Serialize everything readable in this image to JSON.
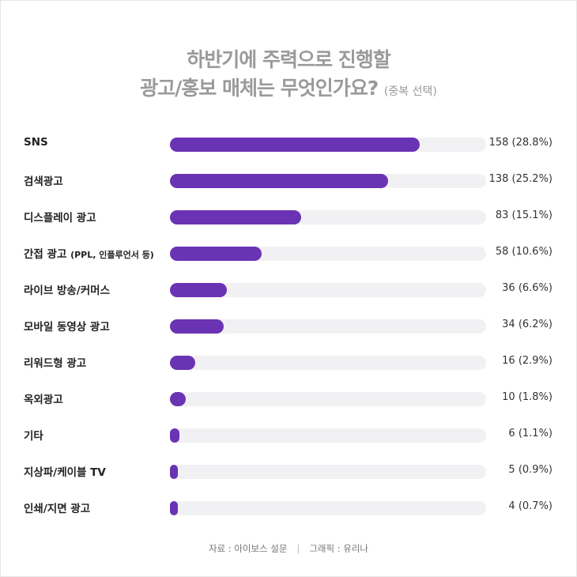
{
  "title": {
    "line1": "하반기에 주력으로 진행할",
    "line2": "광고/홍보 매체는 무엇인가요?",
    "note": "(중복 선택)"
  },
  "colors": {
    "bar": "#6a33b4",
    "track": "#f1f1f3"
  },
  "chart_data": {
    "type": "bar",
    "orientation": "horizontal",
    "categories": [
      "SNS",
      "검색광고",
      "디스플레이 광고",
      "간접 광고 (PPL, 인플루언서 등)",
      "라이브 방송/커머스",
      "모바일 동영상 광고",
      "리워드형 광고",
      "옥외광고",
      "기타",
      "지상파/케이블 TV",
      "인쇄/지면 광고"
    ],
    "values": [
      158,
      138,
      83,
      58,
      36,
      34,
      16,
      10,
      6,
      5,
      4
    ],
    "percents": [
      "28.8%",
      "25.2%",
      "15.1%",
      "10.6%",
      "6.6%",
      "6.2%",
      "2.9%",
      "1.8%",
      "1.1%",
      "0.9%",
      "0.7%"
    ],
    "value_labels": [
      "158 (28.8%)",
      "138 (25.2%)",
      "83 (15.1%)",
      "58 (10.6%)",
      "36 (6.6%)",
      "34 (6.2%)",
      "16 (2.9%)",
      "10 (1.8%)",
      "6 (1.1%)",
      "5 (0.9%)",
      "4 (0.7%)"
    ],
    "xlim": [
      0,
      200
    ]
  },
  "footer": {
    "source": "자료 : 아이보스 설문",
    "separator": "|",
    "credit": "그래픽 : 유리나"
  }
}
